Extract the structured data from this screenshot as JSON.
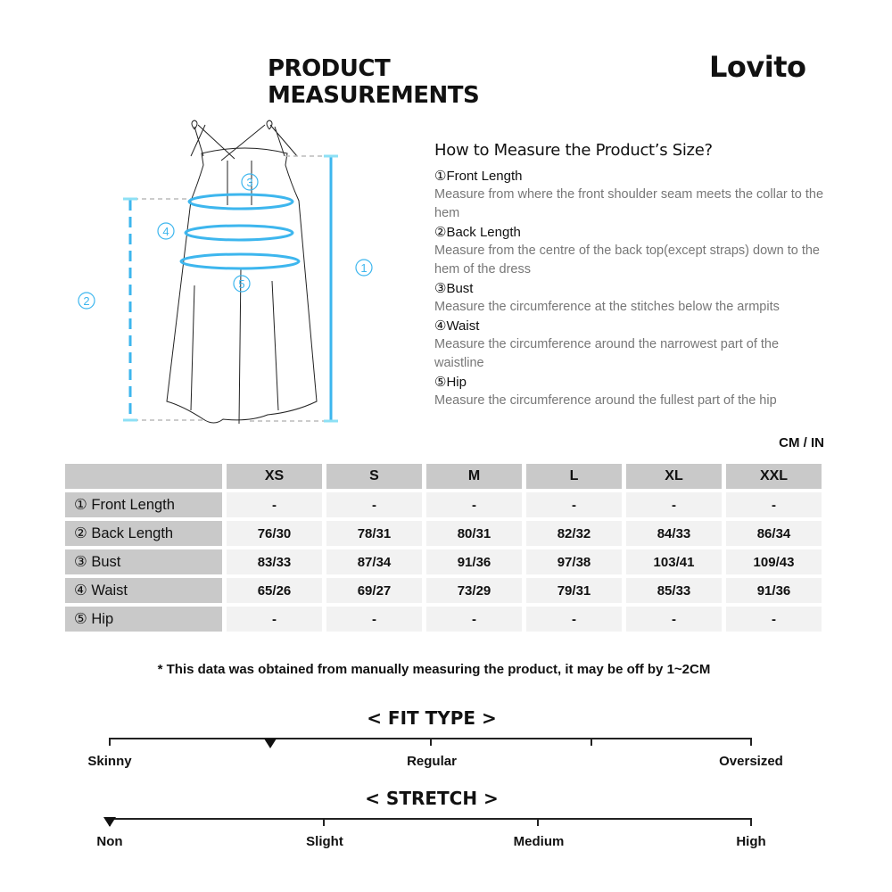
{
  "header": {
    "title": "PRODUCT MEASUREMENTS",
    "brand": "Lovito"
  },
  "diagram": {
    "labels": [
      "①",
      "②",
      "③",
      "④",
      "⑤"
    ],
    "accent_color": "#3db6ee"
  },
  "howto": {
    "heading": "How to Measure the Product’s Size?",
    "items": [
      {
        "title": "①Front Length",
        "desc": "Measure from where the front shoulder seam meets the collar to the hem"
      },
      {
        "title": "②Back Length",
        "desc": "Measure from the centre of the back top(except straps) down to the hem of the dress"
      },
      {
        "title": "③Bust",
        "desc": "Measure the circumference at the stitches below the armpits"
      },
      {
        "title": "④Waist",
        "desc": "Measure the circumference around the narrowest part of the waistline"
      },
      {
        "title": "⑤Hip",
        "desc": "Measure the circumference around the fullest part of the hip"
      }
    ]
  },
  "table": {
    "unit": "CM / IN",
    "sizes": [
      "XS",
      "S",
      "M",
      "L",
      "XL",
      "XXL"
    ],
    "rows": [
      {
        "label": "① Front Length",
        "values": [
          "-",
          "-",
          "-",
          "-",
          "-",
          "-"
        ]
      },
      {
        "label": "② Back Length",
        "values": [
          "76/30",
          "78/31",
          "80/31",
          "82/32",
          "84/33",
          "86/34"
        ]
      },
      {
        "label": "③ Bust",
        "values": [
          "83/33",
          "87/34",
          "91/36",
          "97/38",
          "103/41",
          "109/43"
        ]
      },
      {
        "label": "④ Waist",
        "values": [
          "65/26",
          "69/27",
          "73/29",
          "79/31",
          "85/33",
          "91/36"
        ]
      },
      {
        "label": "⑤ Hip",
        "values": [
          "-",
          "-",
          "-",
          "-",
          "-",
          "-"
        ]
      }
    ]
  },
  "note": "* This data was obtained from manually measuring the product, it may be off by 1~2CM",
  "fit": {
    "title": "< FIT TYPE >",
    "labels": [
      "Skinny",
      "Regular",
      "Oversized"
    ],
    "level": 0.25
  },
  "stretch": {
    "title": "< STRETCH >",
    "labels": [
      "Non",
      "Slight",
      "Medium",
      "High"
    ],
    "level": 0
  }
}
